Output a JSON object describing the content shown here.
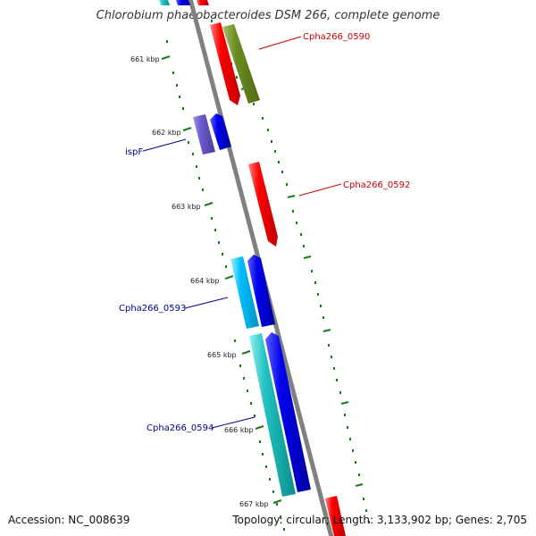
{
  "title": "Chlorobium phaeobacteroides DSM 266, complete genome",
  "footer": {
    "accession": "Accession: NC_008639",
    "summary": "Topology: circular; Length: 3,133,902 bp; Genes: 2,705"
  },
  "colors": {
    "backbone": "#808080",
    "tick": "#1a7a1a",
    "dot": "#1a7a1a",
    "label_red": "#cc0000",
    "label_blue": "#00008b"
  },
  "kbp_labels": [
    "661 kbp",
    "662 kbp",
    "663 kbp",
    "664 kbp",
    "665 kbp",
    "666 kbp",
    "667 kbp"
  ],
  "gene_labels": {
    "g0590": "Cpha266_0590",
    "g0592": "Cpha266_0592",
    "ispF": "ispF",
    "g0593": "Cpha266_0593",
    "g0594": "Cpha266_0594"
  }
}
